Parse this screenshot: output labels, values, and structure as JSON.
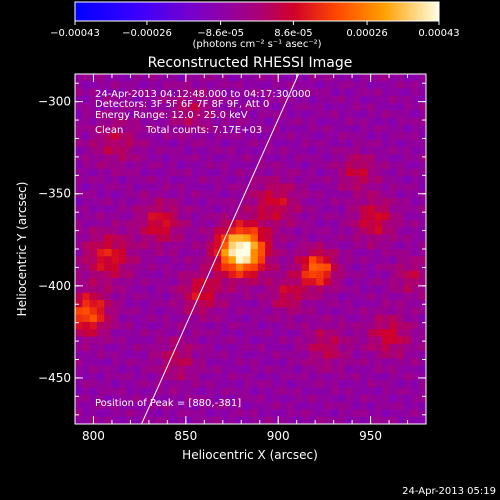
{
  "chart_data": {
    "type": "heatmap",
    "title": "Reconstructed RHESSI Image",
    "xlabel": "Heliocentric X (arcsec)",
    "ylabel": "Heliocentric Y (arcsec)",
    "xlim": [
      790,
      980
    ],
    "ylim": [
      -475,
      -285
    ],
    "x_ticks": [
      800,
      850,
      900,
      950
    ],
    "y_ticks": [
      -300,
      -350,
      -400,
      -450
    ],
    "colorbar": {
      "ticks": [
        "-0.00043",
        "-0.00026",
        "-8.6e-05",
        "8.6e-05",
        "0.00026",
        "0.00043"
      ],
      "vmin": -0.00043,
      "vmax": 0.00043,
      "units_label": "(photons cm⁻² s⁻¹ asec⁻²)"
    },
    "annotations": {
      "time_range": "24-Apr-2013 04:12:48.000 to 04:17:30.000",
      "detectors": "Detectors: 3F 5F 6F 7F 8F 9F, Att 0",
      "energy": "Energy Range: 12.0 - 25.0 keV",
      "method": "Clean",
      "counts": "Total counts: 7.17E+03",
      "peak": "Position of Peak = [880,-381]"
    },
    "peak_position": [
      880,
      -381
    ],
    "limb_curve": {
      "x": [
        826,
        911
      ],
      "y": [
        -475,
        -285
      ]
    },
    "sources": [
      {
        "x": 880,
        "y": -381,
        "intensity": 1.0,
        "sigma": 9
      },
      {
        "x": 921,
        "y": -391,
        "intensity": 0.55,
        "sigma": 7
      },
      {
        "x": 797,
        "y": -415,
        "intensity": 0.5,
        "sigma": 8
      },
      {
        "x": 808,
        "y": -384,
        "intensity": 0.35,
        "sigma": 9
      },
      {
        "x": 836,
        "y": -366,
        "intensity": 0.32,
        "sigma": 8
      },
      {
        "x": 858,
        "y": -404,
        "intensity": 0.3,
        "sigma": 8
      },
      {
        "x": 898,
        "y": -355,
        "intensity": 0.28,
        "sigma": 9
      },
      {
        "x": 952,
        "y": -364,
        "intensity": 0.3,
        "sigma": 8
      },
      {
        "x": 960,
        "y": -427,
        "intensity": 0.28,
        "sigma": 8
      },
      {
        "x": 943,
        "y": -338,
        "intensity": 0.25,
        "sigma": 7
      },
      {
        "x": 926,
        "y": -433,
        "intensity": 0.22,
        "sigma": 8
      },
      {
        "x": 812,
        "y": -322,
        "intensity": 0.2,
        "sigma": 9
      },
      {
        "x": 853,
        "y": -305,
        "intensity": 0.18,
        "sigma": 8
      },
      {
        "x": 845,
        "y": -440,
        "intensity": 0.2,
        "sigma": 8
      },
      {
        "x": 905,
        "y": -405,
        "intensity": 0.25,
        "sigma": 7
      },
      {
        "x": 972,
        "y": -395,
        "intensity": 0.2,
        "sigma": 7
      }
    ]
  },
  "footer": {
    "timestamp": "24-Apr-2013 05:19"
  }
}
